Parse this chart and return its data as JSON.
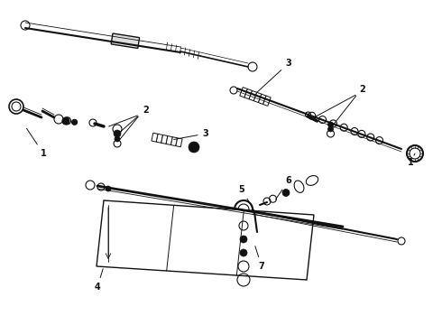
{
  "background_color": "#ffffff",
  "fig_width": 4.9,
  "fig_height": 3.6,
  "dpi": 100,
  "dark": "#111111",
  "gray": "#888888",
  "light_gray": "#cccccc"
}
